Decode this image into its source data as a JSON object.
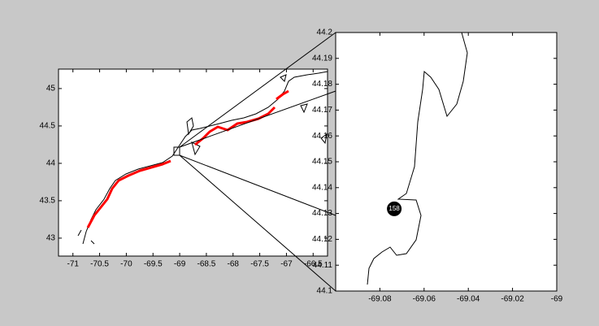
{
  "chart_data": [
    {
      "type": "map",
      "xlim": [
        -71.27,
        -66.23
      ],
      "ylim": [
        42.76,
        45.26
      ],
      "xticks": [
        -71,
        -70.5,
        -70,
        -69.5,
        -69,
        -68.5,
        -68,
        -67.5,
        -67,
        -66.5
      ],
      "yticks": [
        43,
        43.5,
        44,
        44.5,
        45
      ]
    },
    {
      "type": "map",
      "xlim": [
        -69.1,
        -69
      ],
      "ylim": [
        44.1,
        44.2
      ],
      "xticks": [
        -69.08,
        -69.06,
        -69.04,
        -69.02,
        -69
      ],
      "yticks": [
        44.1,
        44.11,
        44.12,
        44.13,
        44.14,
        44.15,
        44.16,
        44.17,
        44.18,
        44.19,
        44.2
      ],
      "points": [
        {
          "x": -69.0735,
          "y": 44.1318,
          "label": "158"
        }
      ]
    }
  ]
}
